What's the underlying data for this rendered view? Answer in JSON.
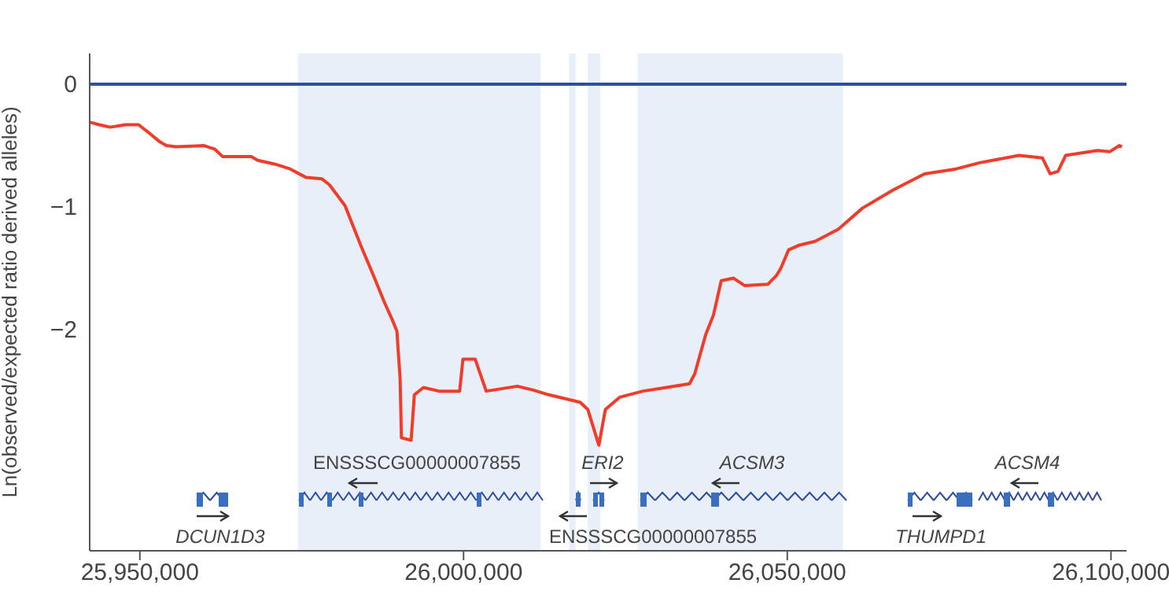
{
  "chart_data": {
    "type": "line",
    "ylabel": "Ln(observed/expected ratio derived alleles)",
    "xlim": [
      25942250,
      26102400
    ],
    "ylim": [
      -3.8,
      0.25
    ],
    "xticks": [
      {
        "value": 25950000,
        "label": "25,950,000"
      },
      {
        "value": 26000000,
        "label": "26,000,000"
      },
      {
        "value": 26050000,
        "label": "26,050,000"
      },
      {
        "value": 26100000,
        "label": "26,100,000"
      }
    ],
    "yticks": [
      0,
      {
        "value": -1,
        "label": "−1"
      },
      {
        "value": -2,
        "label": "−2"
      }
    ],
    "marker": "none",
    "line_style": "solid",
    "series": [
      {
        "color": "#f03c2a",
        "x": [
          25942300,
          25943700,
          25945400,
          25947800,
          25949800,
          25951500,
          25953100,
          25954100,
          25955600,
          25959900,
          25961600,
          25962800,
          25967200,
          25968200,
          25970800,
          25973200,
          25975700,
          25978100,
          25979300,
          25981700,
          25984100,
          25986100,
          25987800,
          25989000,
          25989700,
          25990200,
          25990400,
          25991900,
          25992400,
          25993800,
          25996200,
          25999400,
          25999900,
          26001800,
          26003500,
          26008300,
          26010700,
          26013200,
          26015600,
          26018000,
          26019200,
          26020900,
          26021900,
          26024100,
          26027700,
          26031300,
          26034900,
          26035700,
          26037400,
          26038600,
          26039800,
          26041700,
          26043400,
          26047000,
          26048300,
          26049000,
          26050200,
          26051900,
          26054300,
          26057900,
          26061600,
          26066400,
          26071200,
          26076100,
          26079700,
          26085800,
          26089400,
          26090600,
          26091800,
          26093000,
          26097900,
          26099800,
          26101300,
          26101700
        ],
        "values": [
          -0.31,
          -0.33,
          -0.35,
          -0.33,
          -0.33,
          -0.4,
          -0.47,
          -0.5,
          -0.51,
          -0.5,
          -0.53,
          -0.59,
          -0.59,
          -0.62,
          -0.65,
          -0.69,
          -0.76,
          -0.77,
          -0.82,
          -0.99,
          -1.31,
          -1.56,
          -1.78,
          -1.92,
          -2.01,
          -2.4,
          -2.88,
          -2.9,
          -2.53,
          -2.47,
          -2.5,
          -2.5,
          -2.24,
          -2.24,
          -2.5,
          -2.46,
          -2.49,
          -2.53,
          -2.56,
          -2.59,
          -2.65,
          -2.94,
          -2.65,
          -2.55,
          -2.5,
          -2.47,
          -2.44,
          -2.36,
          -2.04,
          -1.88,
          -1.6,
          -1.58,
          -1.64,
          -1.63,
          -1.56,
          -1.5,
          -1.35,
          -1.31,
          -1.28,
          -1.18,
          -1.01,
          -0.86,
          -0.73,
          -0.69,
          -0.64,
          -0.58,
          -0.6,
          -0.73,
          -0.71,
          -0.58,
          -0.54,
          -0.55,
          -0.5,
          -0.51
        ]
      }
    ],
    "ref_lines": [
      {
        "axis": "y",
        "value": 0,
        "color": "#2c4fa3"
      }
    ],
    "bands": [
      {
        "axis": "x",
        "from": 25974400,
        "to": 26011900,
        "color": "#e9eff8"
      },
      {
        "axis": "x",
        "from": 26016300,
        "to": 26017300,
        "color": "#e9eff8"
      },
      {
        "axis": "x",
        "from": 26019200,
        "to": 26021100,
        "color": "#e9eff8"
      },
      {
        "axis": "x",
        "from": 26026900,
        "to": 26058600,
        "color": "#e9eff8"
      }
    ],
    "annotations": [
      "ENSSSCG00000007855",
      "ERI2",
      "ACSM3",
      "ACSM4",
      "DCUN1D3",
      "ENSSSCG00000007855",
      "THUMPD1"
    ]
  }
}
